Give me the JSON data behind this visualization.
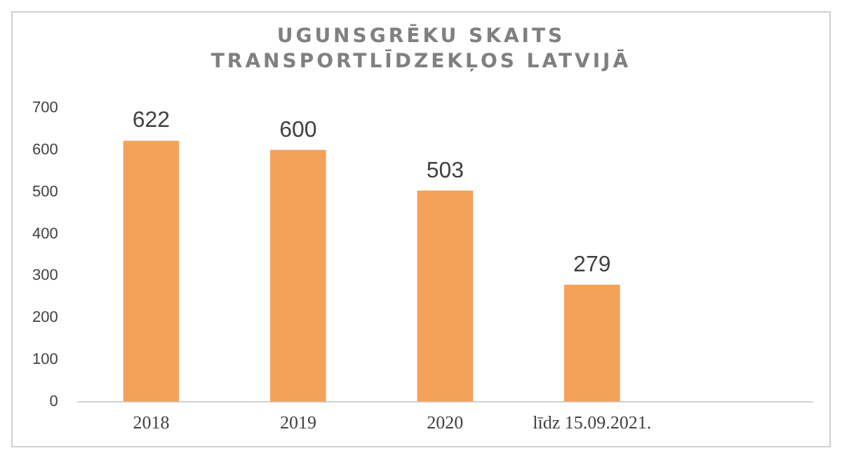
{
  "chart_data": {
    "type": "bar",
    "title": "UGUNSGRĒKU SKAITS TRANSPORTLĪDZEKĻOS LATVIJĀ",
    "categories": [
      "2018",
      "2019",
      "2020",
      "līdz 15.09.2021.",
      null
    ],
    "values": [
      622,
      600,
      503,
      279,
      null
    ],
    "color": "#f4a15a",
    "ylim": [
      0,
      700
    ],
    "yticks": [
      0,
      100,
      200,
      300,
      400,
      500,
      600,
      700
    ],
    "grid": false,
    "data_labels": true,
    "legend": false
  }
}
